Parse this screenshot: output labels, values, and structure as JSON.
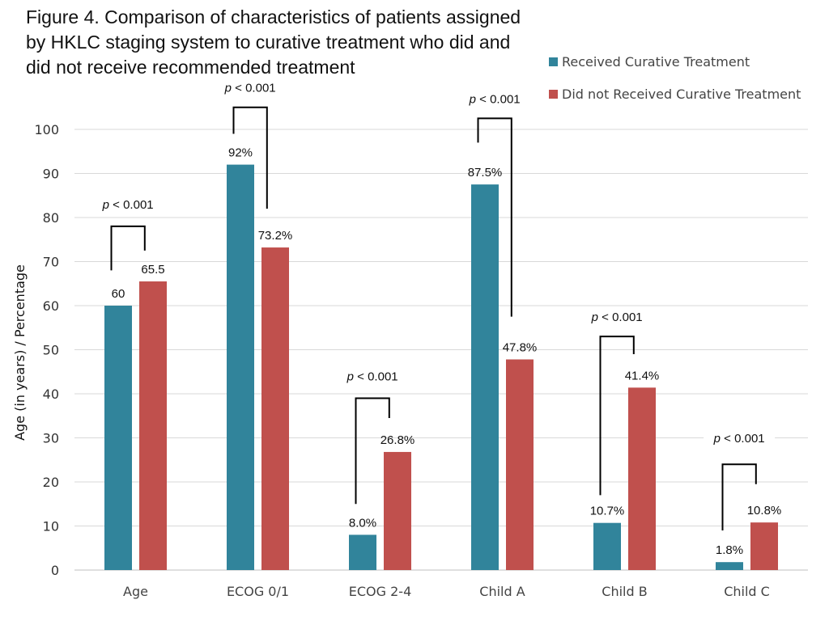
{
  "chart_data": {
    "type": "bar",
    "title_lines": [
      "Figure 4. Comparison of characteristics of patients assigned",
      "by HKLC staging system to curative treatment who did and",
      "did not receive recommended treatment"
    ],
    "ylabel": "Age (in years) / Percentage",
    "xlabel": "",
    "ylim": [
      0,
      100
    ],
    "yticks": [
      0,
      10,
      20,
      30,
      40,
      50,
      60,
      70,
      80,
      90,
      100
    ],
    "grid": true,
    "legend_position": "top-right",
    "categories": [
      "Age",
      "ECOG 0/1",
      "ECOG 2-4",
      "Child A",
      "Child B",
      "Child C"
    ],
    "series": [
      {
        "name": "Received Curative Treatment",
        "color": "#31849B",
        "values": [
          60,
          92,
          8.0,
          87.5,
          10.7,
          1.8
        ],
        "labels": [
          "60",
          "92%",
          "8.0%",
          "87.5%",
          "10.7%",
          "1.8%"
        ]
      },
      {
        "name": "Did not Received Curative Treatment",
        "color": "#C0504D",
        "values": [
          65.5,
          73.2,
          26.8,
          47.8,
          41.4,
          10.8
        ],
        "labels": [
          "65.5",
          "73.2%",
          "26.8%",
          "47.8%",
          "41.4%",
          "10.8%"
        ]
      }
    ],
    "annotations": [
      {
        "text": "p < 0.001",
        "p_label": "p",
        "rest": " < 0.001",
        "category": "Age",
        "level": 78,
        "left_bottom": 68,
        "right_bottom": 72.5,
        "text_level": 82
      },
      {
        "text": "p < 0.001",
        "p_label": "p",
        "rest": " < 0.001",
        "category": "ECOG 0/1",
        "level": 105,
        "left_bottom": 99,
        "right_bottom": 82,
        "text_level": 108.5
      },
      {
        "text": "p < 0.001",
        "p_label": "p",
        "rest": " < 0.001",
        "category": "ECOG 2-4",
        "level": 39,
        "left_bottom": 15,
        "right_bottom": 34.5,
        "text_level": 43
      },
      {
        "text": "p < 0.001",
        "p_label": "p",
        "rest": " < 0.001",
        "category": "Child A",
        "level": 102.5,
        "left_bottom": 97,
        "right_bottom": 57.5,
        "text_level": 106
      },
      {
        "text": "p < 0.001",
        "p_label": "p",
        "rest": " < 0.001",
        "category": "Child B",
        "level": 53,
        "left_bottom": 17,
        "right_bottom": 49,
        "text_level": 56.5
      },
      {
        "text": "p < 0.001",
        "p_label": "p",
        "rest": " < 0.001",
        "category": "Child C",
        "level": 24,
        "left_bottom": 9,
        "right_bottom": 19.5,
        "text_level": 29
      }
    ]
  }
}
